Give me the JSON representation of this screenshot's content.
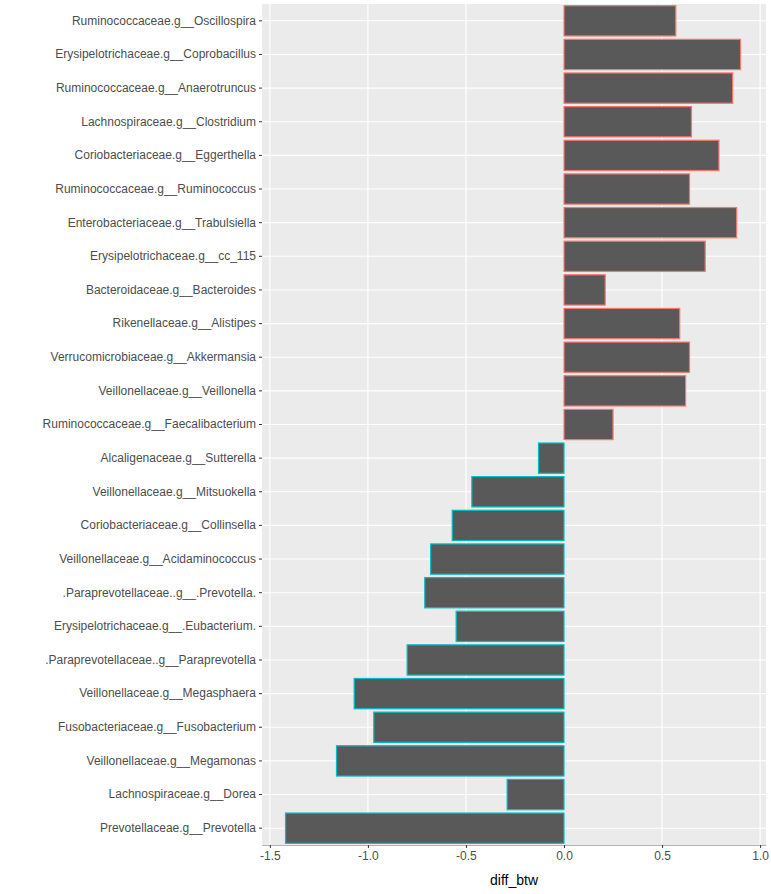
{
  "chart_data": {
    "type": "bar",
    "orientation": "horizontal",
    "xlabel": "diff_btw",
    "categories": [
      "Ruminococcaceae.g__Oscillospira",
      "Erysipelotrichaceae.g__Coprobacillus",
      "Ruminococcaceae.g__Anaerotruncus",
      "Lachnospiraceae.g__Clostridium",
      "Coriobacteriaceae.g__Eggerthella",
      "Ruminococcaceae.g__Ruminococcus",
      "Enterobacteriaceae.g__Trabulsiella",
      "Erysipelotrichaceae.g__cc_115",
      "Bacteroidaceae.g__Bacteroides",
      "Rikenellaceae.g__Alistipes",
      "Verrucomicrobiaceae.g__Akkermansia",
      "Veillonellaceae.g__Veillonella",
      "Ruminococcaceae.g__Faecalibacterium",
      "Alcaligenaceae.g__Sutterella",
      "Veillonellaceae.g__Mitsuokella",
      "Coriobacteriaceae.g__Collinsella",
      "Veillonellaceae.g__Acidaminococcus",
      ".Paraprevotellaceae..g__.Prevotella.",
      "Erysipelotrichaceae.g__.Eubacterium.",
      ".Paraprevotellaceae..g__Paraprevotella",
      "Veillonellaceae.g__Megasphaera",
      "Fusobacteriaceae.g__Fusobacterium",
      "Veillonellaceae.g__Megamonas",
      "Lachnospiraceae.g__Dorea",
      "Prevotellaceae.g__Prevotella"
    ],
    "values": [
      0.57,
      0.9,
      0.86,
      0.65,
      0.79,
      0.64,
      0.88,
      0.72,
      0.21,
      0.59,
      0.64,
      0.62,
      0.25,
      -0.13,
      -0.47,
      -0.57,
      -0.68,
      -0.71,
      -0.55,
      -0.8,
      -1.07,
      -0.97,
      -1.16,
      -0.29,
      -1.42
    ],
    "color": "#595959",
    "colors": [
      "#F8766D",
      "#F8766D",
      "#F8766D",
      "#F8766D",
      "#F8766D",
      "#F8766D",
      "#F8766D",
      "#F8766D",
      "#F8766D",
      "#F8766D",
      "#F8766D",
      "#F8766D",
      "#F8766D",
      "#00BFC4",
      "#00BFC4",
      "#00BFC4",
      "#00BFC4",
      "#00BFC4",
      "#00BFC4",
      "#00BFC4",
      "#00BFC4",
      "#00BFC4",
      "#00BFC4",
      "#00BFC4",
      "#00BFC4"
    ],
    "xlim": [
      -1.54,
      1.03
    ],
    "xticks": [
      -1.5,
      {
        "value": -1.0,
        "label": "-1.0"
      },
      -0.5,
      {
        "value": 0,
        "label": "0.0"
      },
      0.5,
      {
        "value": 1.0,
        "label": "1.0"
      }
    ],
    "grid": true
  }
}
